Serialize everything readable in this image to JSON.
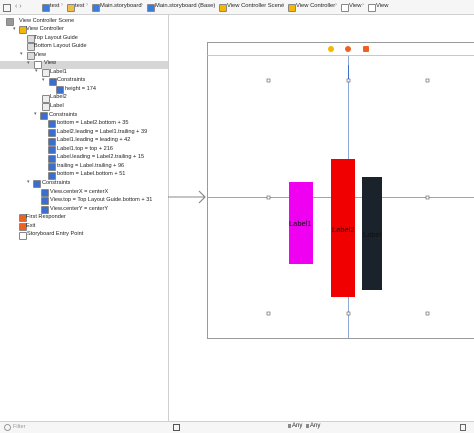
{
  "breadcrumb": [
    "test",
    "test",
    "Main.storyboard",
    "Main.storyboard (Base)",
    "View Controller Scene",
    "View Controller",
    "View",
    "View"
  ],
  "outline": [
    "View Controller Scene",
    "View Controller",
    "Top Layout Guide",
    "Bottom Layout Guide",
    "View",
    "View",
    "Label1",
    "Constraints",
    "height = 174",
    "Label2",
    "Label",
    "Constraints",
    "bottom = Label2.bottom + 35",
    "Label2.leading = Label1.trailing + 39",
    "Label1.leading = leading + 42",
    "Label1.top = top + 216",
    "Label.leading = Label2.trailing + 15",
    "trailing = Label.trailing + 96",
    "bottom = Label.bottom + 51",
    "Constraints",
    "View.centerX = centerX",
    "View.top = Top Layout Guide.bottom + 31",
    "View.centerY = centerY",
    "First Responder",
    "Exit",
    "Storyboard Entry Point"
  ],
  "canvas": {
    "labels": [
      "Label1",
      "Label2",
      "Label"
    ]
  },
  "footer": {
    "filter": "Filter",
    "size_classes": [
      "Any",
      "Any"
    ]
  }
}
